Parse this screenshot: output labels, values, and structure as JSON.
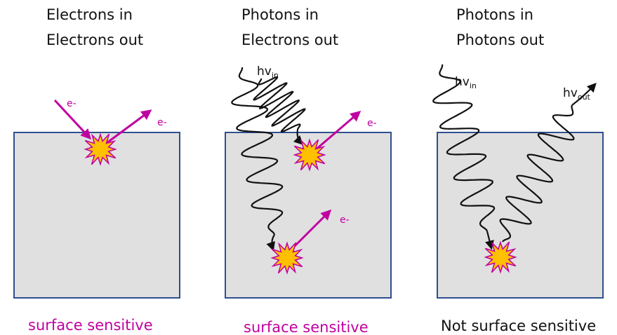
{
  "colors": {
    "electron": "#c000a0",
    "box_fill": "#e0e0e0",
    "box_stroke": "#2f4f8f",
    "burst_fill": "#ffc000",
    "burst_stroke": "#c000a0",
    "photon": "#111111"
  },
  "panels": [
    {
      "title_line1": "Electrons in",
      "title_line2": "Electrons out",
      "caption": "surface sensitive",
      "caption_color": "#c000a0",
      "electron_in_label": "e-",
      "electron_out_label": "e-"
    },
    {
      "title_line1": "Photons in",
      "title_line2": "Electrons out",
      "caption": "surface sensitive",
      "caption_color": "#c000a0",
      "photon_in_label": "hv",
      "photon_in_sub": "in",
      "electron_out_label_top": "e-",
      "electron_out_label_bottom": "e-"
    },
    {
      "title_line1": "Photons in",
      "title_line2": "Photons out",
      "caption": "Not surface sensitive",
      "caption_color": "#111111",
      "photon_in_label": "hv",
      "photon_in_sub": "in",
      "photon_out_label": "hv",
      "photon_out_sub": "out"
    }
  ]
}
